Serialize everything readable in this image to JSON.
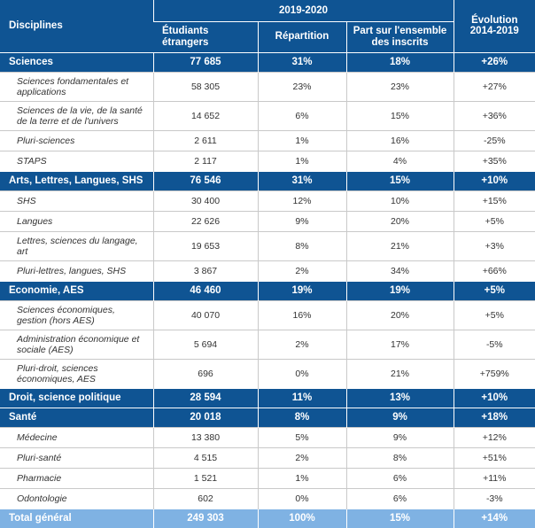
{
  "header": {
    "disciplines": "Disciplines",
    "period": "2019-2020",
    "evolution": "Évolution 2014-2019",
    "col_students": "Étudiants étrangers",
    "col_distribution": "Répartition",
    "col_share": "Part sur l'ensemble des inscrits"
  },
  "rows": [
    {
      "type": "cat",
      "label": "Sciences",
      "students": "77 685",
      "distribution": "31%",
      "share": "18%",
      "evolution": "+26%"
    },
    {
      "type": "sub",
      "label": "Sciences fondamentales et applications",
      "students": "58 305",
      "distribution": "23%",
      "share": "23%",
      "evolution": "+27%"
    },
    {
      "type": "sub",
      "label": "Sciences de la vie, de la santé de la terre et de l'univers",
      "students": "14 652",
      "distribution": "6%",
      "share": "15%",
      "evolution": "+36%"
    },
    {
      "type": "sub",
      "label": "Pluri-sciences",
      "students": "2 611",
      "distribution": "1%",
      "share": "16%",
      "evolution": "-25%"
    },
    {
      "type": "sub",
      "label": "STAPS",
      "students": "2 117",
      "distribution": "1%",
      "share": "4%",
      "evolution": "+35%"
    },
    {
      "type": "cat",
      "label": "Arts, Lettres, Langues, SHS",
      "students": "76 546",
      "distribution": "31%",
      "share": "15%",
      "evolution": "+10%"
    },
    {
      "type": "sub",
      "label": "SHS",
      "students": "30 400",
      "distribution": "12%",
      "share": "10%",
      "evolution": "+15%"
    },
    {
      "type": "sub",
      "label": "Langues",
      "students": "22 626",
      "distribution": "9%",
      "share": "20%",
      "evolution": "+5%"
    },
    {
      "type": "sub",
      "label": "Lettres, sciences du langage, art",
      "students": "19 653",
      "distribution": "8%",
      "share": "21%",
      "evolution": "+3%"
    },
    {
      "type": "sub",
      "label": "Pluri-lettres, langues, SHS",
      "students": "3 867",
      "distribution": "2%",
      "share": "34%",
      "evolution": "+66%"
    },
    {
      "type": "cat",
      "label": "Economie, AES",
      "students": "46 460",
      "distribution": "19%",
      "share": "19%",
      "evolution": "+5%"
    },
    {
      "type": "sub",
      "label": "Sciences économiques, gestion (hors AES)",
      "students": "40 070",
      "distribution": "16%",
      "share": "20%",
      "evolution": "+5%"
    },
    {
      "type": "sub",
      "label": "Administration économique et sociale (AES)",
      "students": "5 694",
      "distribution": "2%",
      "share": "17%",
      "evolution": "-5%"
    },
    {
      "type": "sub",
      "label": "Pluri-droit, sciences économiques, AES",
      "students": "696",
      "distribution": "0%",
      "share": "21%",
      "evolution": "+759%"
    },
    {
      "type": "cat",
      "label": "Droit, science politique",
      "students": "28 594",
      "distribution": "11%",
      "share": "13%",
      "evolution": "+10%"
    },
    {
      "type": "cat",
      "label": "Santé",
      "students": "20 018",
      "distribution": "8%",
      "share": "9%",
      "evolution": "+18%"
    },
    {
      "type": "sub",
      "label": "Médecine",
      "students": "13 380",
      "distribution": "5%",
      "share": "9%",
      "evolution": "+12%"
    },
    {
      "type": "sub",
      "label": "Pluri-santé",
      "students": "4 515",
      "distribution": "2%",
      "share": "8%",
      "evolution": "+51%"
    },
    {
      "type": "sub",
      "label": "Pharmacie",
      "students": "1 521",
      "distribution": "1%",
      "share": "6%",
      "evolution": "+11%"
    },
    {
      "type": "sub",
      "label": "Odontologie",
      "students": "602",
      "distribution": "0%",
      "share": "6%",
      "evolution": "-3%"
    },
    {
      "type": "total",
      "label": "Total général",
      "students": "249 303",
      "distribution": "100%",
      "share": "15%",
      "evolution": "+14%"
    }
  ]
}
